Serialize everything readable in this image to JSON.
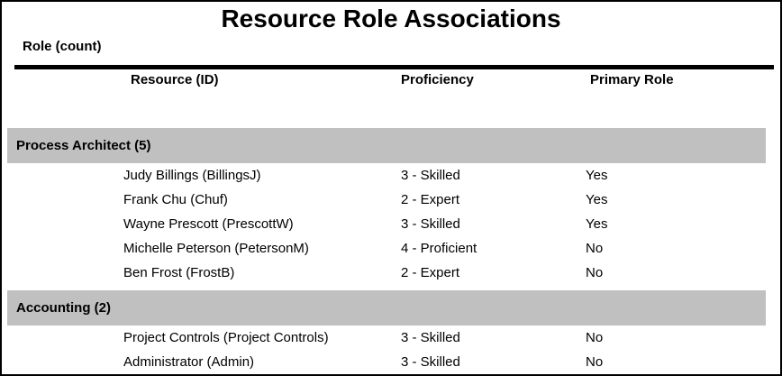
{
  "report": {
    "title": "Resource Role Associations",
    "role_count_label": "Role (count)",
    "columns": [
      "Resource (ID)",
      "Proficiency",
      "Primary Role"
    ],
    "groups": [
      {
        "name": "Process Architect (5)",
        "rows": [
          {
            "resource": "Judy Billings (BillingsJ)",
            "proficiency": "3 - Skilled",
            "primary_role": "Yes"
          },
          {
            "resource": "Frank Chu (Chuf)",
            "proficiency": "2 - Expert",
            "primary_role": "Yes"
          },
          {
            "resource": "Wayne Prescott (PrescottW)",
            "proficiency": "3 - Skilled",
            "primary_role": "Yes"
          },
          {
            "resource": "Michelle Peterson (PetersonM)",
            "proficiency": "4 - Proficient",
            "primary_role": "No"
          },
          {
            "resource": "Ben Frost (FrostB)",
            "proficiency": "2 - Expert",
            "primary_role": "No"
          }
        ]
      },
      {
        "name": "Accounting (2)",
        "rows": [
          {
            "resource": "Project Controls (Project Controls)",
            "proficiency": "3 - Skilled",
            "primary_role": "No"
          },
          {
            "resource": "Administrator (Admin)",
            "proficiency": "3 - Skilled",
            "primary_role": "No"
          }
        ]
      }
    ],
    "colors": {
      "group_band": "#c0c0c0",
      "border": "#000000",
      "background": "#ffffff",
      "text": "#000000"
    }
  }
}
